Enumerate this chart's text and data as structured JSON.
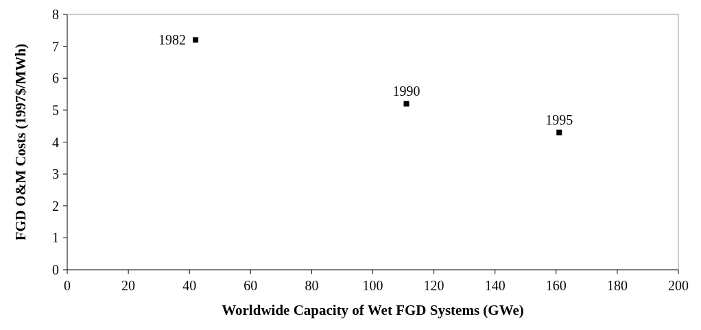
{
  "chart_data": {
    "type": "scatter",
    "xlabel": "Worldwide Capacity of Wet FGD Systems (GWe)",
    "ylabel": "FGD O&M Costs (1997$/MWh)",
    "x": [
      42,
      111,
      161
    ],
    "values": [
      7.2,
      5.2,
      4.3
    ],
    "color": "#000000",
    "marker": "square",
    "xlim": [
      0,
      200
    ],
    "xticks": [
      0,
      20,
      40,
      60,
      80,
      100,
      120,
      140,
      160,
      180,
      200
    ],
    "ylim": [
      0,
      8
    ],
    "yticks": [
      0,
      1,
      2,
      3,
      4,
      5,
      6,
      7,
      8
    ],
    "grid": false,
    "legend": false,
    "annotations": [
      {
        "text": "1982",
        "x": 42,
        "y": 7.2
      },
      {
        "text": "1990",
        "x": 111,
        "y": 5.2
      },
      {
        "text": "1995",
        "x": 161,
        "y": 4.3
      }
    ]
  }
}
